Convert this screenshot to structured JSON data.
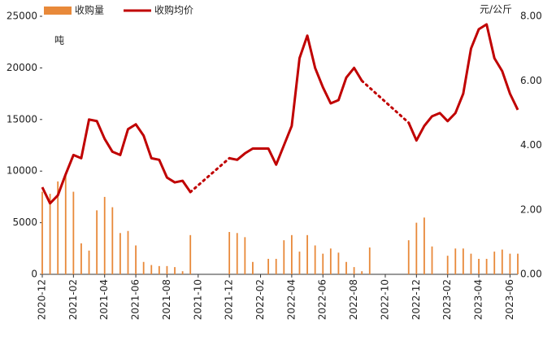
{
  "chart_data": {
    "type": "bar_line",
    "y_label": "吨",
    "y2_label": "元/公斤",
    "categories": [
      "2020-12",
      null,
      null,
      null,
      "2021-02",
      null,
      null,
      null,
      "2021-04",
      null,
      null,
      null,
      "2021-06",
      null,
      null,
      null,
      "2021-08",
      null,
      null,
      null,
      "2021-10",
      null,
      null,
      null,
      "2021-12",
      null,
      null,
      null,
      "2022-02",
      null,
      null,
      null,
      "2022-04",
      null,
      null,
      null,
      "2022-06",
      null,
      null,
      null,
      "2022-08",
      null,
      null,
      null,
      "2022-10",
      null,
      null,
      null,
      "2022-12",
      null,
      null,
      null,
      "2023-02",
      null,
      null,
      null,
      "2023-04",
      null,
      null,
      null,
      "2023-06",
      null
    ],
    "series": [
      {
        "name": "收购量",
        "color": "#e8893a",
        "axis": "y",
        "kind": "bar",
        "values": [
          8000,
          7800,
          9000,
          9800,
          8000,
          3000,
          2300,
          6200,
          7500,
          6500,
          4000,
          4200,
          2800,
          1200,
          900,
          800,
          800,
          700,
          300,
          3800,
          null,
          null,
          null,
          null,
          4100,
          4000,
          3600,
          1200,
          0,
          1500,
          1500,
          3300,
          3800,
          2200,
          3800,
          2800,
          2000,
          2500,
          2100,
          1200,
          700,
          300,
          2600,
          null,
          null,
          null,
          null,
          3300,
          5000,
          5500,
          2700,
          0,
          1800,
          2500,
          2500,
          2000,
          1500,
          1500,
          2200,
          2400,
          2000,
          2000
        ]
      },
      {
        "name": "收购均价",
        "color": "#c00000",
        "axis": "y2",
        "kind": "line",
        "values": [
          2.7,
          2.2,
          2.45,
          3.1,
          3.7,
          3.6,
          4.8,
          4.75,
          4.2,
          3.8,
          3.7,
          4.5,
          4.65,
          4.3,
          3.6,
          3.55,
          3.0,
          2.85,
          2.9,
          2.55,
          null,
          null,
          null,
          null,
          3.6,
          3.55,
          3.75,
          3.9,
          3.9,
          3.9,
          3.4,
          4.0,
          4.6,
          6.7,
          7.4,
          6.4,
          5.8,
          5.3,
          5.4,
          6.1,
          6.4,
          6.0,
          null,
          null,
          null,
          null,
          null,
          4.7,
          4.15,
          4.6,
          4.9,
          5.0,
          4.75,
          5.0,
          5.6,
          7.0,
          7.6,
          7.75,
          6.7,
          6.3,
          5.6,
          5.1
        ]
      }
    ],
    "ylim": [
      0,
      25000
    ],
    "yticks": [
      0,
      5000,
      10000,
      15000,
      20000,
      25000
    ],
    "y2lim": [
      0,
      8
    ],
    "y2ticks": [
      {
        "value": 0,
        "label": "0.00"
      },
      {
        "value": 2,
        "label": "2.00"
      },
      {
        "value": 4,
        "label": "4.00"
      },
      {
        "value": 6,
        "label": "6.00"
      },
      {
        "value": 8,
        "label": "8.00"
      }
    ],
    "legend": "top-left"
  }
}
